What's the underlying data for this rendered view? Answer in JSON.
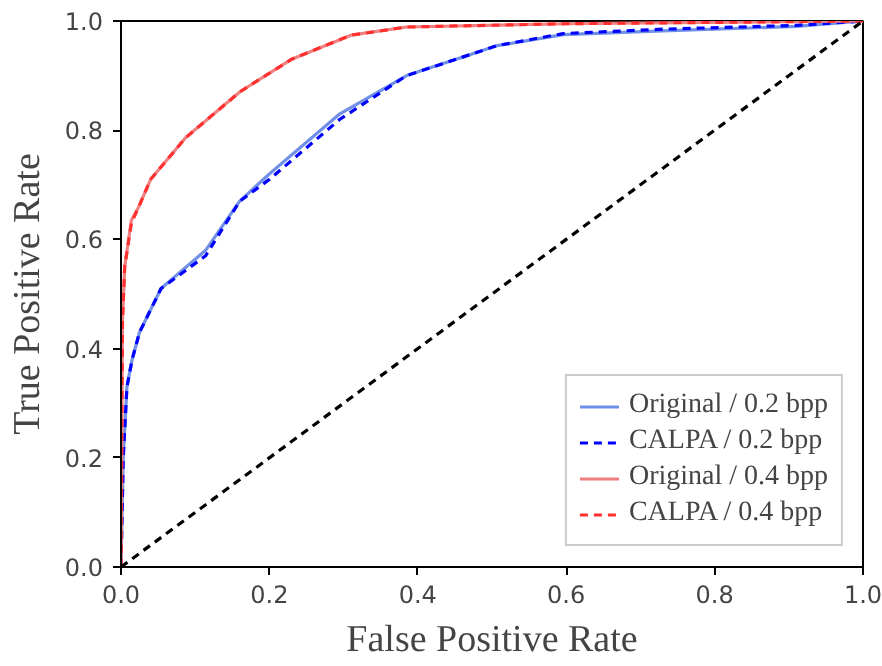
{
  "chart_data": {
    "type": "line",
    "xlabel": "False Positive Rate",
    "ylabel": "True Positive Rate",
    "xlim": [
      0.0,
      1.0
    ],
    "ylim": [
      0.0,
      1.0
    ],
    "xticks": [
      {
        "value": 0,
        "label": "0.0"
      },
      0.2,
      0.4,
      0.6,
      0.8,
      {
        "value": 1,
        "label": "1.0"
      }
    ],
    "yticks": [
      {
        "value": 0,
        "label": "0.0"
      },
      0.2,
      0.4,
      0.6,
      0.8,
      {
        "value": 1,
        "label": "1.0"
      }
    ],
    "grid": false,
    "legend": "bottom right",
    "marker": "none",
    "series": [
      {
        "name": "Original / 0.2 bpp",
        "color": "#7090e8",
        "line_style": "solid",
        "x": [
          0,
          0.003,
          0.008,
          0.015,
          0.025,
          0.054,
          0.114,
          0.16,
          0.2,
          0.295,
          0.385,
          0.474,
          0.507,
          0.596,
          0.73,
          0.91,
          1.0
        ],
        "values": [
          0,
          0.2,
          0.33,
          0.38,
          0.43,
          0.51,
          0.58,
          0.67,
          0.72,
          0.83,
          0.9,
          0.94,
          0.955,
          0.975,
          0.982,
          0.99,
          1.0
        ]
      },
      {
        "name": "CALPA / 0.2 bpp",
        "color": "#0000ff",
        "line_style": "dashed",
        "x": [
          0,
          0.003,
          0.008,
          0.015,
          0.025,
          0.054,
          0.114,
          0.16,
          0.2,
          0.295,
          0.385,
          0.474,
          0.507,
          0.596,
          0.73,
          0.91,
          1.0
        ],
        "values": [
          0,
          0.2,
          0.33,
          0.38,
          0.43,
          0.51,
          0.57,
          0.67,
          0.71,
          0.82,
          0.9,
          0.94,
          0.955,
          0.977,
          0.985,
          0.992,
          1.0
        ]
      },
      {
        "name": "Original / 0.4 bpp",
        "color": "#f08080",
        "line_style": "solid",
        "x": [
          0,
          0.002,
          0.005,
          0.014,
          0.024,
          0.04,
          0.087,
          0.16,
          0.23,
          0.31,
          0.385,
          0.6,
          1.0
        ],
        "values": [
          0,
          0.45,
          0.55,
          0.635,
          0.66,
          0.71,
          0.786,
          0.87,
          0.93,
          0.974,
          0.989,
          0.995,
          1.0
        ]
      },
      {
        "name": "CALPA / 0.4 bpp",
        "color": "#ff3030",
        "line_style": "dashed",
        "x": [
          0,
          0.002,
          0.005,
          0.014,
          0.024,
          0.04,
          0.087,
          0.16,
          0.23,
          0.31,
          0.385,
          0.6,
          1.0
        ],
        "values": [
          0,
          0.45,
          0.55,
          0.63,
          0.66,
          0.71,
          0.786,
          0.87,
          0.93,
          0.974,
          0.989,
          0.995,
          1.0
        ]
      },
      {
        "color": "#000000",
        "line_style": "dashed",
        "x": [
          0,
          1
        ],
        "values": [
          0,
          1
        ]
      }
    ]
  }
}
